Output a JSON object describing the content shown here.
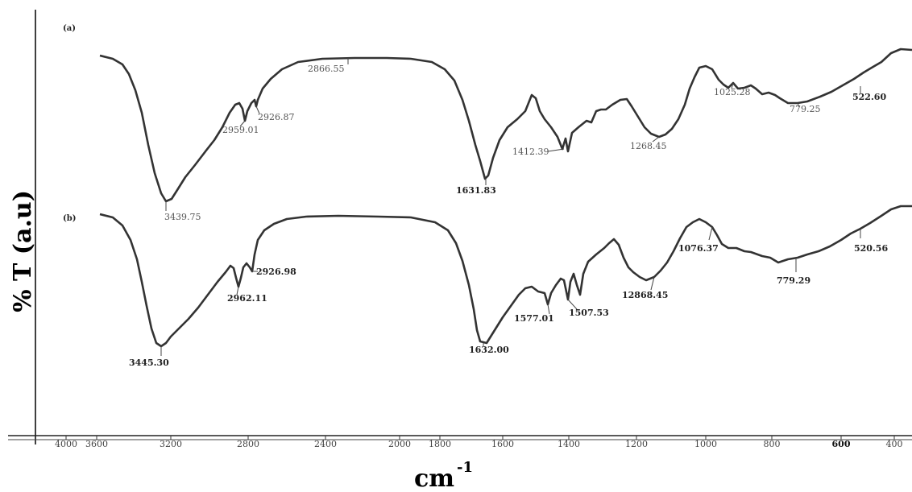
{
  "chart_data": {
    "type": "line",
    "ylabel": "% T (a.u)",
    "xlabel_base": "cm",
    "xlabel_sup": "-1",
    "xlim": [
      4000,
      400
    ],
    "x_reversed": true,
    "grid": false,
    "x_ticks": [
      {
        "value": 4000,
        "label": "4000",
        "bold": false
      },
      {
        "value": 3600,
        "label": "3600",
        "bold": false
      },
      {
        "value": 3200,
        "label": "3200",
        "bold": false
      },
      {
        "value": 2800,
        "label": "2800",
        "bold": false
      },
      {
        "value": 2400,
        "label": "2400",
        "bold": false
      },
      {
        "value": 2000,
        "label": "2000",
        "bold": false
      },
      {
        "value": 1800,
        "label": "1800",
        "bold": false
      },
      {
        "value": 1600,
        "label": "1600",
        "bold": false
      },
      {
        "value": 1400,
        "label": "1400",
        "bold": false
      },
      {
        "value": 1200,
        "label": "1200",
        "bold": false
      },
      {
        "value": 1000,
        "label": "1000",
        "bold": false
      },
      {
        "value": 800,
        "label": "800",
        "bold": false
      },
      {
        "value": 600,
        "label": "600",
        "bold": true
      },
      {
        "value": 400,
        "label": "400",
        "bold": false
      }
    ],
    "series": [
      {
        "name": "(a)",
        "peaks": [
          {
            "label": "3439.75",
            "bold": false
          },
          {
            "label": "2959.01",
            "bold": false
          },
          {
            "label": "2926.87",
            "bold": false
          },
          {
            "label": "2866.55",
            "bold": false
          },
          {
            "label": "1631.83",
            "bold": true
          },
          {
            "label": "1412.39",
            "bold": false
          },
          {
            "label": "1268.45",
            "bold": false
          },
          {
            "label": "1025.28",
            "bold": false
          },
          {
            "label": "779.25",
            "bold": false
          },
          {
            "label": "522.60",
            "bold": true
          }
        ]
      },
      {
        "name": "(b)",
        "peaks": [
          {
            "label": "3445.30",
            "bold": true
          },
          {
            "label": "2962.11",
            "bold": true
          },
          {
            "label": "2926.98",
            "bold": true
          },
          {
            "label": "1632.00",
            "bold": true
          },
          {
            "label": "1577.01",
            "bold": true
          },
          {
            "label": "1507.53",
            "bold": true
          },
          {
            "label": "12868.45",
            "bold": true
          },
          {
            "label": "1076.37",
            "bold": true
          },
          {
            "label": "779.29",
            "bold": true
          },
          {
            "label": "520.56",
            "bold": true
          }
        ]
      }
    ]
  }
}
